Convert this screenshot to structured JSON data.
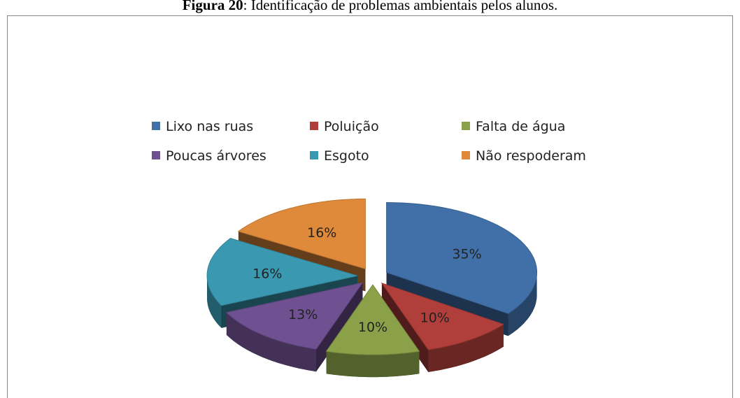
{
  "chart_data": {
    "type": "pie",
    "title_label": "Figura 20",
    "title": ": Identificação de problemas ambientais pelos alunos.",
    "categories": [
      "Lixo nas ruas",
      "Poluição",
      "Falta de água",
      "Poucas árvores",
      "Esgoto",
      "Não respoderam"
    ],
    "values": [
      35,
      10,
      10,
      13,
      16,
      16
    ],
    "value_labels": [
      "35%",
      "10%",
      "10%",
      "13%",
      "16%",
      "16%"
    ],
    "colors": [
      "#4170a8",
      "#b03f3b",
      "#8aa14a",
      "#6f5192",
      "#3a99b0",
      "#df8a3a"
    ],
    "legend": "top"
  }
}
